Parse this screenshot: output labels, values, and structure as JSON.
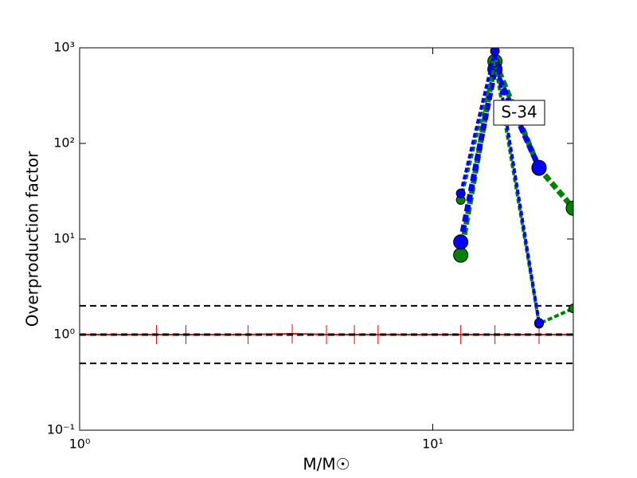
{
  "chart_data": {
    "type": "line",
    "xlabel": "M/M☉",
    "ylabel": "Overproduction factor",
    "xscale": "log",
    "yscale": "log",
    "xlim": [
      1,
      25
    ],
    "ylim": [
      0.1,
      1000
    ],
    "xticks": [
      {
        "value": 1,
        "label": "10⁰"
      },
      {
        "value": 10,
        "label": "10¹"
      }
    ],
    "yticks": [
      {
        "value": 0.1,
        "label": "10⁻¹"
      },
      {
        "value": 1,
        "label": "10⁰"
      },
      {
        "value": 10,
        "label": "10¹"
      },
      {
        "value": 100,
        "label": "10²"
      },
      {
        "value": 1000,
        "label": "10³"
      }
    ],
    "hlines": [
      2,
      1,
      0.5
    ],
    "hline_color": "#000000",
    "annotation": "S-34",
    "series": [
      {
        "color": "#ff0000",
        "style": "solid",
        "marker": "tick",
        "x": [
          1,
          1.65,
          2,
          3,
          4,
          5,
          6,
          7,
          12,
          15,
          20,
          25
        ],
        "values": [
          1,
          1,
          1,
          1,
          1.02,
          1,
          1,
          1,
          1,
          1,
          1,
          1
        ]
      },
      {
        "color": "#008000",
        "style": "thick",
        "marker": "circle",
        "x": [
          12,
          15,
          20,
          25
        ],
        "values": [
          6.8,
          720,
          55,
          21
        ]
      },
      {
        "color": "#0000ff",
        "style": "thick",
        "marker": "circle",
        "x": [
          12,
          15,
          20
        ],
        "values": [
          9.3,
          596,
          56
        ]
      },
      {
        "color": "#008000",
        "style": "thin",
        "marker": "circle",
        "x": [
          12,
          15,
          20,
          25
        ],
        "values": [
          25.6,
          700,
          1.3,
          1.88
        ]
      },
      {
        "color": "#0000ff",
        "style": "thin",
        "marker": "circle",
        "x": [
          12,
          15,
          20
        ],
        "values": [
          30,
          926,
          1.33
        ]
      }
    ]
  }
}
